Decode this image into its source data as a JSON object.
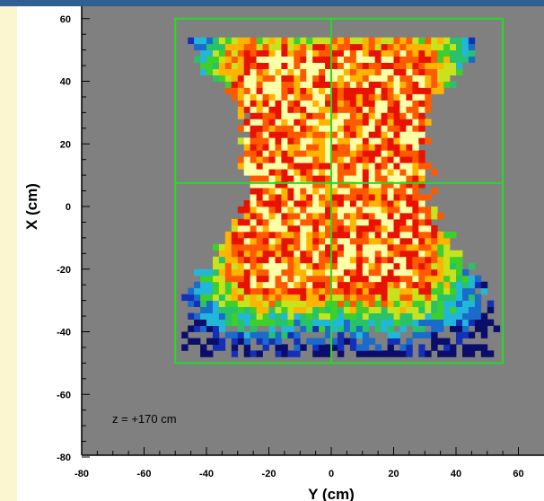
{
  "chart_data": {
    "type": "heatmap",
    "title": "",
    "xlabel": "Y (cm)",
    "ylabel": "X (cm)",
    "xlim": [
      -80,
      65
    ],
    "ylim": [
      -80,
      65
    ],
    "x_ticks": [
      -80,
      -60,
      -40,
      -20,
      0,
      20,
      40,
      60
    ],
    "y_ticks": [
      -80,
      -60,
      -40,
      -20,
      0,
      20,
      40,
      60
    ],
    "x_tick_labels": [
      "-80",
      "-60",
      "-40",
      "-20",
      "0",
      "20",
      "40",
      "60"
    ],
    "y_tick_labels": [
      "-80",
      "-60",
      "-40",
      "-20",
      "0",
      "20",
      "40",
      "60"
    ],
    "annotation": "z = +170 cm",
    "grid": false,
    "background_color": "#808080",
    "colormap": [
      "#0b0d6b",
      "#1530b8",
      "#1a6ccc",
      "#22b7d8",
      "#27c26a",
      "#3fcf2b",
      "#c8e21c",
      "#ffb400",
      "#ff5a00",
      "#e81200",
      "#ffffa8"
    ],
    "frame_color": "#22dd22",
    "overlay_frame": {
      "y_range": [
        -50,
        55
      ],
      "x_range": [
        -50,
        60
      ],
      "divider_y": 0,
      "divider_x": 7.5
    },
    "distribution": {
      "core_y_range": [
        -27,
        27
      ],
      "core_x_range": [
        -24,
        45
      ],
      "outer_x_range": [
        -48,
        54
      ],
      "outer_y_at_top": [
        -45,
        44
      ],
      "outer_y_at_waist": [
        -29,
        30
      ],
      "outer_y_at_bottom": [
        -46,
        50
      ]
    }
  }
}
